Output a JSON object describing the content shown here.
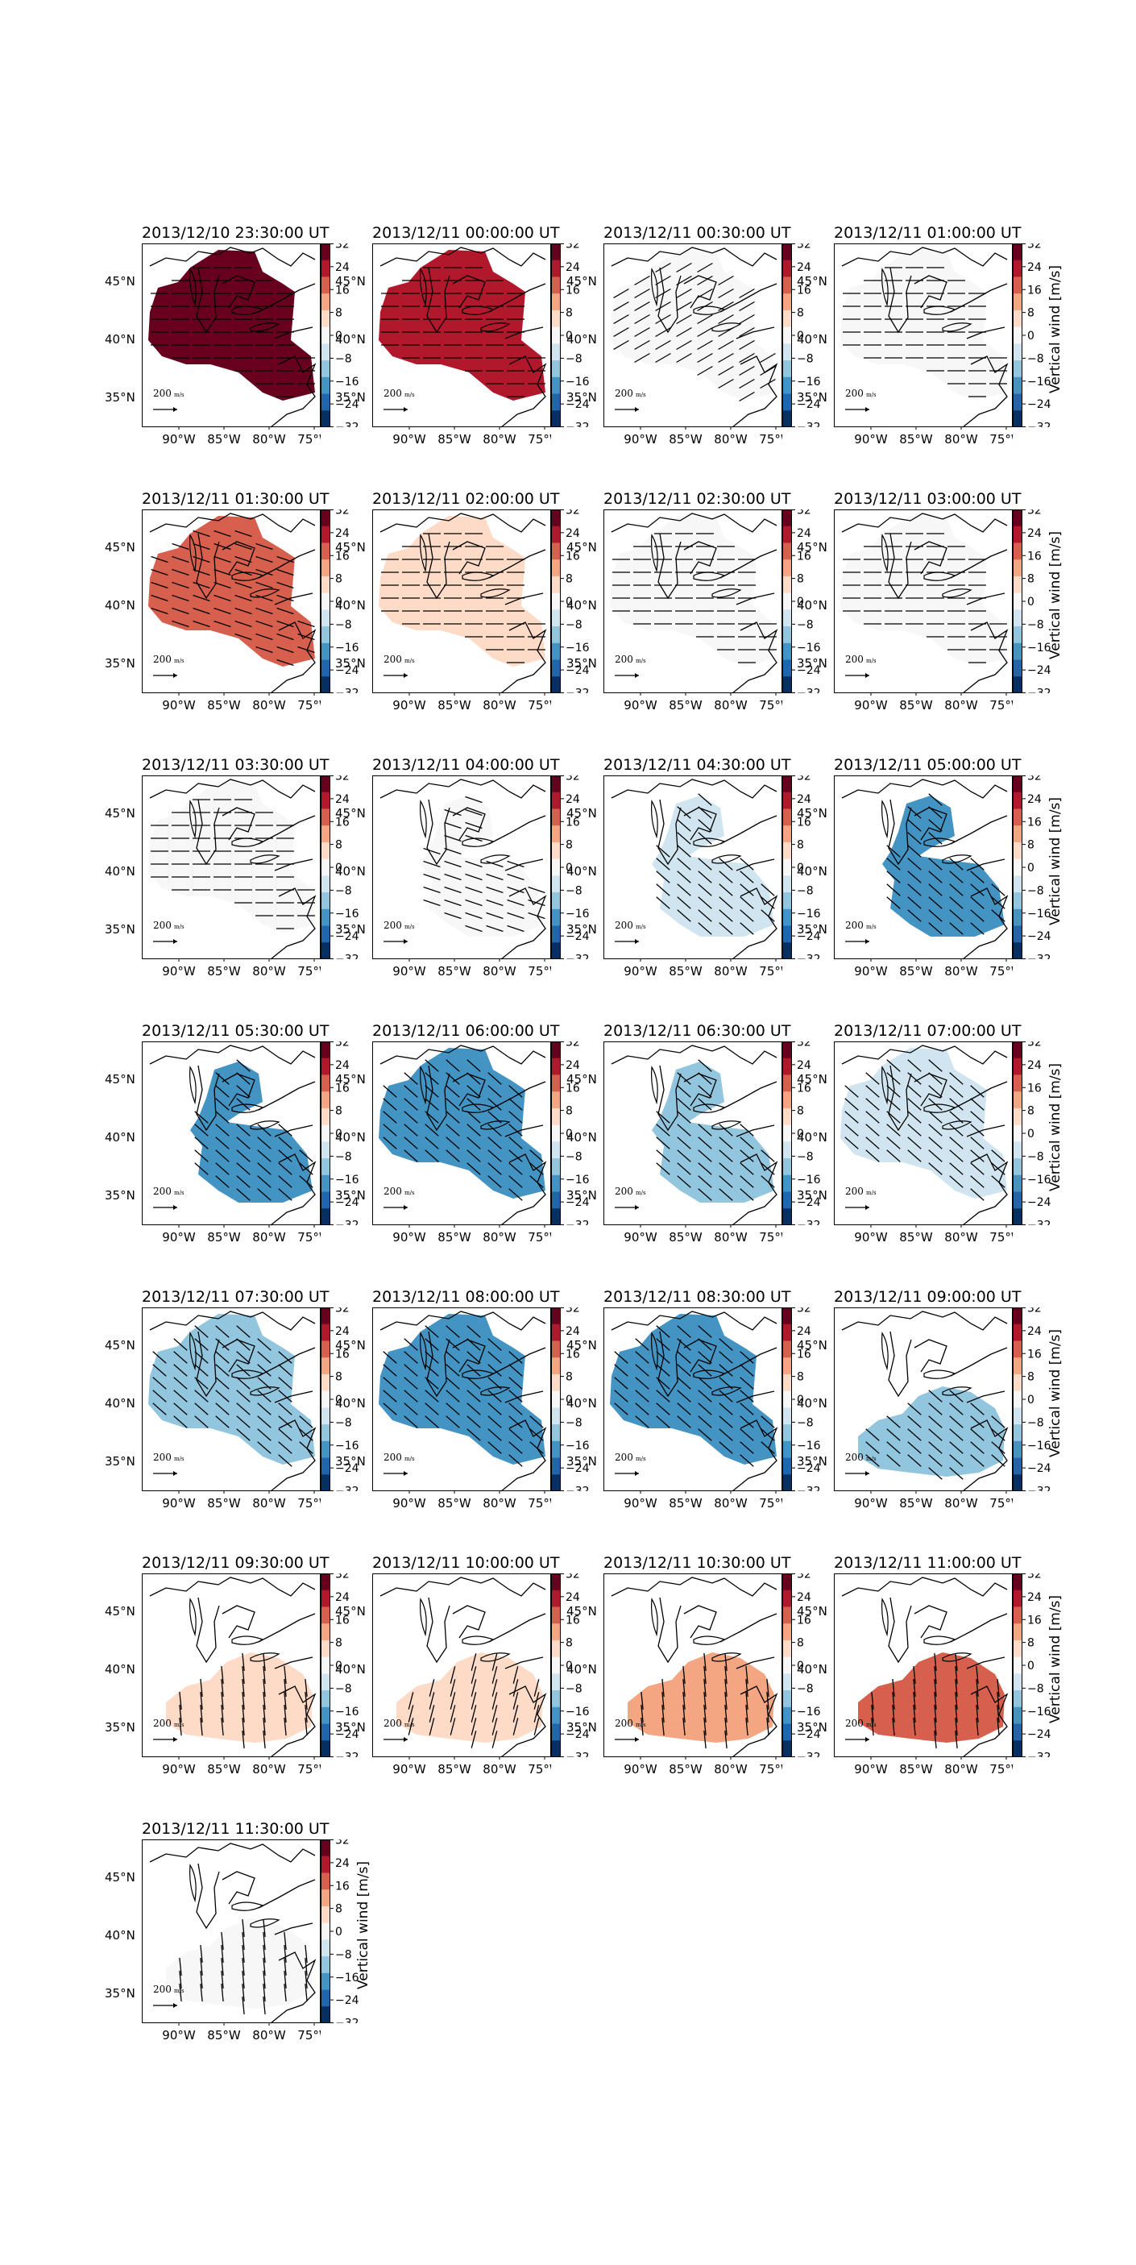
{
  "figure": {
    "type": "map-grid",
    "colorbar": {
      "label": "Vertical wind [m/s]",
      "ticks": [
        "32",
        "24",
        "16",
        "8",
        "0",
        "−8",
        "−16",
        "−24",
        "−32"
      ],
      "range": [
        -32,
        32
      ],
      "colormap": "RdBu_r",
      "colors_low_to_high": [
        "#053061",
        "#2166ac",
        "#4393c3",
        "#92c5de",
        "#d1e5f0",
        "#f7f7f7",
        "#fddbc7",
        "#f4a582",
        "#d6604d",
        "#b2182b",
        "#67001f"
      ]
    },
    "axes": {
      "x_ticks": [
        "90°W",
        "85°W",
        "80°W",
        "75°W"
      ],
      "y_ticks": [
        "45°N",
        "40°N",
        "35°N"
      ]
    },
    "scale_label": "200",
    "scale_units": "m/s",
    "land_outline_color": "#000000"
  },
  "panels": [
    {
      "title": "2013/12/10 23:30:00 UT",
      "value": 30,
      "region": "full",
      "arrow": "E"
    },
    {
      "title": "2013/12/11 00:00:00 UT",
      "value": 28,
      "region": "full",
      "arrow": "E"
    },
    {
      "title": "2013/12/11 00:30:00 UT",
      "value": 0,
      "region": "full",
      "arrow": "NE"
    },
    {
      "title": "2013/12/11 01:00:00 UT",
      "value": 0,
      "region": "full",
      "arrow": "E"
    },
    {
      "title": "2013/12/11 01:30:00 UT",
      "value": 18,
      "region": "full",
      "arrow": "ESE"
    },
    {
      "title": "2013/12/11 02:00:00 UT",
      "value": 5,
      "region": "full",
      "arrow": "E"
    },
    {
      "title": "2013/12/11 02:30:00 UT",
      "value": 0,
      "region": "full",
      "arrow": "E"
    },
    {
      "title": "2013/12/11 03:00:00 UT",
      "value": 0,
      "region": "full",
      "arrow": "E"
    },
    {
      "title": "2013/12/11 03:30:00 UT",
      "value": -3,
      "region": "full",
      "arrow": "E"
    },
    {
      "title": "2013/12/11 04:00:00 UT",
      "value": -3,
      "region": "east",
      "arrow": "ESE"
    },
    {
      "title": "2013/12/11 04:30:00 UT",
      "value": -7,
      "region": "east",
      "arrow": "SE"
    },
    {
      "title": "2013/12/11 05:00:00 UT",
      "value": -20,
      "region": "east",
      "arrow": "SE"
    },
    {
      "title": "2013/12/11 05:30:00 UT",
      "value": -18,
      "region": "east",
      "arrow": "SE"
    },
    {
      "title": "2013/12/11 06:00:00 UT",
      "value": -20,
      "region": "full",
      "arrow": "SE"
    },
    {
      "title": "2013/12/11 06:30:00 UT",
      "value": -14,
      "region": "east",
      "arrow": "SE"
    },
    {
      "title": "2013/12/11 07:00:00 UT",
      "value": -8,
      "region": "full",
      "arrow": "SE"
    },
    {
      "title": "2013/12/11 07:30:00 UT",
      "value": -12,
      "region": "full",
      "arrow": "SE"
    },
    {
      "title": "2013/12/11 08:00:00 UT",
      "value": -22,
      "region": "full",
      "arrow": "SE"
    },
    {
      "title": "2013/12/11 08:30:00 UT",
      "value": -19,
      "region": "full",
      "arrow": "SE"
    },
    {
      "title": "2013/12/11 09:00:00 UT",
      "value": -10,
      "region": "south",
      "arrow": "SE"
    },
    {
      "title": "2013/12/11 09:30:00 UT",
      "value": 4,
      "region": "south",
      "arrow": "S"
    },
    {
      "title": "2013/12/11 10:00:00 UT",
      "value": 8,
      "region": "south",
      "arrow": "SSW"
    },
    {
      "title": "2013/12/11 10:30:00 UT",
      "value": 12,
      "region": "south",
      "arrow": "S"
    },
    {
      "title": "2013/12/11 11:00:00 UT",
      "value": 18,
      "region": "south",
      "arrow": "S"
    },
    {
      "title": "2013/12/11 11:30:00 UT",
      "value": 0,
      "region": "south",
      "arrow": "S"
    }
  ]
}
